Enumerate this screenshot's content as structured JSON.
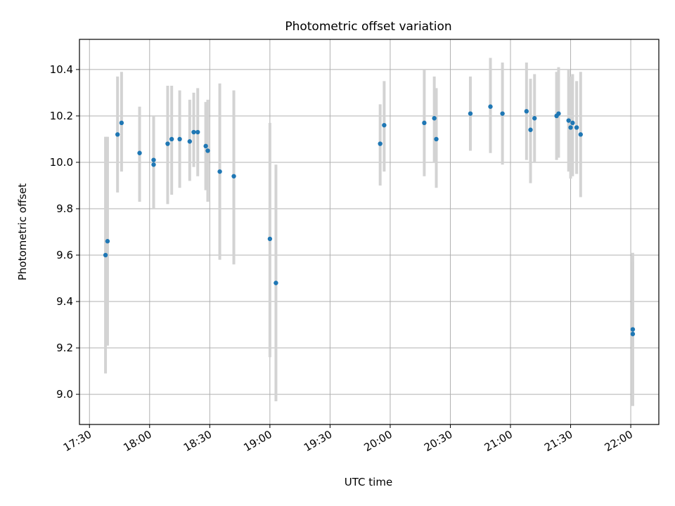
{
  "chart_data": {
    "type": "scatter",
    "title": "Photometric offset variation",
    "xlabel": "UTC time",
    "ylabel": "Photometric offset",
    "x_axis_kind": "time",
    "xlim": [
      "17:25",
      "22:14"
    ],
    "ylim": [
      8.87,
      10.53
    ],
    "x_ticks": [
      "17:30",
      "18:00",
      "18:30",
      "19:00",
      "19:30",
      "20:00",
      "20:30",
      "21:00",
      "21:30",
      "22:00"
    ],
    "y_ticks": [
      9.0,
      9.2,
      9.4,
      9.6,
      9.8,
      10.0,
      10.2,
      10.4
    ],
    "y_tick_labels": [
      "9.0",
      "9.2",
      "9.4",
      "9.6",
      "9.8",
      "10.0",
      "10.2",
      "10.4"
    ],
    "grid": true,
    "marker_color": "#1f77b4",
    "errorbar_color": "#d3d3d3",
    "points": [
      {
        "t": "17:38",
        "y": 9.6,
        "low": 9.09,
        "high": 10.11
      },
      {
        "t": "17:39",
        "y": 9.66,
        "low": 9.21,
        "high": 10.11
      },
      {
        "t": "17:44",
        "y": 10.12,
        "low": 9.87,
        "high": 10.37
      },
      {
        "t": "17:46",
        "y": 10.17,
        "low": 9.96,
        "high": 10.39
      },
      {
        "t": "17:55",
        "y": 10.04,
        "low": 9.83,
        "high": 10.24
      },
      {
        "t": "18:02",
        "y": 9.99,
        "low": 9.8,
        "high": 10.18
      },
      {
        "t": "18:02",
        "y": 10.01,
        "low": 9.82,
        "high": 10.2
      },
      {
        "t": "18:09",
        "y": 10.08,
        "low": 9.82,
        "high": 10.33
      },
      {
        "t": "18:11",
        "y": 10.1,
        "low": 9.86,
        "high": 10.33
      },
      {
        "t": "18:15",
        "y": 10.1,
        "low": 9.89,
        "high": 10.31
      },
      {
        "t": "18:20",
        "y": 10.09,
        "low": 9.92,
        "high": 10.27
      },
      {
        "t": "18:22",
        "y": 10.13,
        "low": 9.98,
        "high": 10.3
      },
      {
        "t": "18:24",
        "y": 10.13,
        "low": 9.94,
        "high": 10.32
      },
      {
        "t": "18:28",
        "y": 10.07,
        "low": 9.88,
        "high": 10.26
      },
      {
        "t": "18:29",
        "y": 10.05,
        "low": 9.83,
        "high": 10.27
      },
      {
        "t": "18:35",
        "y": 9.96,
        "low": 9.58,
        "high": 10.34
      },
      {
        "t": "18:42",
        "y": 9.94,
        "low": 9.56,
        "high": 10.31
      },
      {
        "t": "19:00",
        "y": 9.67,
        "low": 9.16,
        "high": 10.17
      },
      {
        "t": "19:03",
        "y": 9.48,
        "low": 8.97,
        "high": 9.99
      },
      {
        "t": "19:55",
        "y": 10.08,
        "low": 9.9,
        "high": 10.25
      },
      {
        "t": "19:57",
        "y": 10.16,
        "low": 9.96,
        "high": 10.35
      },
      {
        "t": "20:17",
        "y": 10.17,
        "low": 9.94,
        "high": 10.4
      },
      {
        "t": "20:22",
        "y": 10.19,
        "low": 10.0,
        "high": 10.37
      },
      {
        "t": "20:23",
        "y": 10.1,
        "low": 9.89,
        "high": 10.32
      },
      {
        "t": "20:40",
        "y": 10.21,
        "low": 10.05,
        "high": 10.37
      },
      {
        "t": "20:50",
        "y": 10.24,
        "low": 10.04,
        "high": 10.45
      },
      {
        "t": "20:56",
        "y": 10.21,
        "low": 9.99,
        "high": 10.43
      },
      {
        "t": "21:08",
        "y": 10.22,
        "low": 10.01,
        "high": 10.43
      },
      {
        "t": "21:10",
        "y": 10.14,
        "low": 9.91,
        "high": 10.36
      },
      {
        "t": "21:12",
        "y": 10.19,
        "low": 10.0,
        "high": 10.38
      },
      {
        "t": "21:23",
        "y": 10.2,
        "low": 10.01,
        "high": 10.39
      },
      {
        "t": "21:24",
        "y": 10.21,
        "low": 10.02,
        "high": 10.41
      },
      {
        "t": "21:29",
        "y": 10.18,
        "low": 9.96,
        "high": 10.4
      },
      {
        "t": "21:30",
        "y": 10.15,
        "low": 9.93,
        "high": 10.37
      },
      {
        "t": "21:31",
        "y": 10.17,
        "low": 9.94,
        "high": 10.38
      },
      {
        "t": "21:33",
        "y": 10.15,
        "low": 9.95,
        "high": 10.35
      },
      {
        "t": "21:35",
        "y": 10.12,
        "low": 9.85,
        "high": 10.39
      },
      {
        "t": "22:01",
        "y": 9.28,
        "low": 8.95,
        "high": 9.61
      },
      {
        "t": "22:01",
        "y": 9.26,
        "low": 8.95,
        "high": 9.57
      }
    ]
  }
}
